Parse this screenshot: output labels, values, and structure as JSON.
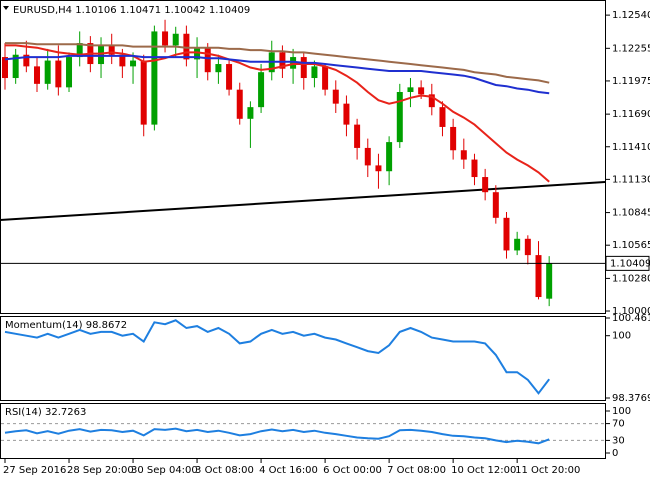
{
  "chart_data": [
    {
      "type": "candlestick",
      "symbol": "EURUSD,H4",
      "categories": [
        "27 Sep 2016",
        null,
        null,
        null,
        null,
        null,
        "28 Sep 20:00",
        null,
        null,
        null,
        null,
        null,
        "30 Sep 04:00",
        null,
        null,
        null,
        null,
        null,
        "3 Oct 08:00",
        null,
        null,
        null,
        null,
        null,
        "4 Oct 16:00",
        null,
        null,
        null,
        null,
        null,
        "6 Oct 00:00",
        null,
        null,
        null,
        null,
        null,
        "7 Oct 08:00",
        null,
        null,
        null,
        null,
        null,
        "10 Oct 12:00",
        null,
        null,
        null,
        null,
        null,
        "11 Oct 20:00",
        null,
        null,
        null
      ],
      "open": [
        1.1218,
        1.12,
        1.122,
        1.121,
        1.1195,
        1.1215,
        1.1192,
        1.1218,
        1.123,
        1.1212,
        1.1228,
        1.122,
        1.121,
        1.1215,
        1.116,
        1.124,
        1.1228,
        1.1238,
        1.1216,
        1.1226,
        1.1205,
        1.1212,
        1.119,
        1.1165,
        1.1175,
        1.1205,
        1.1222,
        1.1208,
        1.1218,
        1.12,
        1.121,
        1.119,
        1.1178,
        1.116,
        1.114,
        1.1125,
        1.112,
        1.1145,
        1.1188,
        1.1192,
        1.1186,
        1.1175,
        1.1158,
        1.1138,
        1.113,
        1.1115,
        1.1102,
        1.108,
        1.1052,
        1.1062,
        1.1048,
        1.10106
      ],
      "high": [
        1.123,
        1.1225,
        1.1232,
        1.1218,
        1.1225,
        1.1228,
        1.1222,
        1.124,
        1.1236,
        1.1235,
        1.1238,
        1.1225,
        1.1222,
        1.122,
        1.1245,
        1.125,
        1.1244,
        1.1245,
        1.1235,
        1.123,
        1.122,
        1.1215,
        1.1196,
        1.118,
        1.1212,
        1.1232,
        1.1228,
        1.1225,
        1.1222,
        1.1215,
        1.1212,
        1.1198,
        1.1185,
        1.1165,
        1.1148,
        1.1135,
        1.115,
        1.1195,
        1.12,
        1.1198,
        1.1195,
        1.118,
        1.1165,
        1.1148,
        1.1135,
        1.1122,
        1.1108,
        1.1085,
        1.1068,
        1.1065,
        1.106,
        1.10471
      ],
      "low": [
        1.119,
        1.1195,
        1.1205,
        1.1188,
        1.119,
        1.1185,
        1.1188,
        1.121,
        1.1205,
        1.12,
        1.1212,
        1.12,
        1.1195,
        1.115,
        1.1155,
        1.1222,
        1.1218,
        1.121,
        1.12,
        1.1198,
        1.1195,
        1.1185,
        1.116,
        1.114,
        1.117,
        1.1198,
        1.12,
        1.1195,
        1.119,
        1.1192,
        1.1185,
        1.117,
        1.115,
        1.113,
        1.1115,
        1.1105,
        1.1108,
        1.114,
        1.1175,
        1.1182,
        1.1168,
        1.115,
        1.113,
        1.1122,
        1.1108,
        1.1095,
        1.1075,
        1.1045,
        1.1048,
        1.104,
        1.101,
        1.10042
      ],
      "close": [
        1.12,
        1.122,
        1.121,
        1.1195,
        1.1215,
        1.1192,
        1.1218,
        1.123,
        1.1212,
        1.1228,
        1.122,
        1.121,
        1.1215,
        1.116,
        1.124,
        1.1228,
        1.1238,
        1.1216,
        1.1226,
        1.1205,
        1.1212,
        1.119,
        1.1165,
        1.1175,
        1.1205,
        1.1222,
        1.1208,
        1.1218,
        1.12,
        1.121,
        1.119,
        1.1178,
        1.116,
        1.114,
        1.1125,
        1.112,
        1.1145,
        1.1188,
        1.1192,
        1.1186,
        1.1175,
        1.1158,
        1.1138,
        1.113,
        1.1115,
        1.1102,
        1.108,
        1.1052,
        1.1062,
        1.1048,
        1.1012,
        1.10409
      ],
      "up_color": "#00a000",
      "down_color": "#e00000",
      "moving_averages": [
        {
          "color": "#e8231a",
          "values": [
            1.1228,
            1.1228,
            1.1227,
            1.1226,
            1.1224,
            1.1222,
            1.1221,
            1.122,
            1.1221,
            1.1221,
            1.1222,
            1.1221,
            1.1219,
            1.1214,
            1.1215,
            1.1217,
            1.122,
            1.1222,
            1.1222,
            1.1221,
            1.1219,
            1.1216,
            1.1213,
            1.1209,
            1.1207,
            1.1208,
            1.121,
            1.1212,
            1.1212,
            1.1212,
            1.121,
            1.1207,
            1.1202,
            1.1196,
            1.1188,
            1.1181,
            1.1178,
            1.118,
            1.1183,
            1.1185,
            1.1184,
            1.1178,
            1.1171,
            1.1166,
            1.116,
            1.1152,
            1.1144,
            1.1136,
            1.113,
            1.1125,
            1.1119,
            1.1111
          ]
        },
        {
          "color": "#1f2fd0",
          "values": [
            1.1216,
            1.1217,
            1.1218,
            1.1218,
            1.1218,
            1.1218,
            1.1219,
            1.1219,
            1.1219,
            1.1219,
            1.1219,
            1.1219,
            1.1219,
            1.1218,
            1.1218,
            1.1218,
            1.1218,
            1.1218,
            1.1218,
            1.1217,
            1.1217,
            1.1216,
            1.1215,
            1.1214,
            1.1214,
            1.1214,
            1.1214,
            1.1214,
            1.1213,
            1.1213,
            1.1212,
            1.1211,
            1.121,
            1.1209,
            1.1208,
            1.1207,
            1.1206,
            1.1206,
            1.1206,
            1.1206,
            1.1205,
            1.1204,
            1.1203,
            1.1202,
            1.12,
            1.1197,
            1.1194,
            1.1193,
            1.1191,
            1.119,
            1.1188,
            1.1187
          ]
        },
        {
          "color": "#9c6a4a",
          "values": [
            1.123,
            1.123,
            1.123,
            1.1229,
            1.1229,
            1.1229,
            1.1229,
            1.1229,
            1.1228,
            1.1228,
            1.1228,
            1.1228,
            1.1227,
            1.1227,
            1.1227,
            1.1227,
            1.1227,
            1.1226,
            1.1226,
            1.1226,
            1.1226,
            1.1225,
            1.1225,
            1.1224,
            1.1224,
            1.1223,
            1.1223,
            1.1222,
            1.1222,
            1.1221,
            1.122,
            1.1219,
            1.1218,
            1.1217,
            1.1216,
            1.1215,
            1.1214,
            1.1213,
            1.1212,
            1.1211,
            1.121,
            1.1209,
            1.1208,
            1.1207,
            1.1205,
            1.1204,
            1.1203,
            1.1201,
            1.12,
            1.1199,
            1.1198,
            1.1196
          ]
        }
      ],
      "last_price": 1.10409,
      "ylim": [
        1.09983,
        1.12644
      ],
      "yticks": [
        {
          "value": 1.1254,
          "label": "1.12540"
        },
        {
          "value": 1.12255,
          "label": "1.12255"
        },
        {
          "value": 1.11975,
          "label": "1.11975"
        },
        {
          "value": 1.1169,
          "label": "1.11690"
        },
        {
          "value": 1.1141,
          "label": "1.11410"
        },
        {
          "value": 1.1113,
          "label": "1.11130"
        },
        {
          "value": 1.10845,
          "label": "1.10845"
        },
        {
          "value": 1.10565,
          "label": "1.10565"
        },
        {
          "value": 1.1028,
          "label": "1.10280"
        },
        {
          "value": 1.1,
          "label": "1.10000"
        }
      ]
    },
    {
      "type": "line",
      "name": "Momentum(14)",
      "last": 98.8672,
      "color": "#1e7fe0",
      "values": [
        100.1,
        100.05,
        100.0,
        99.95,
        100.05,
        99.95,
        100.05,
        100.15,
        100.05,
        100.1,
        100.1,
        100.0,
        100.05,
        99.85,
        100.35,
        100.3,
        100.4,
        100.2,
        100.25,
        100.1,
        100.2,
        100.05,
        99.8,
        99.85,
        100.05,
        100.15,
        100.05,
        100.1,
        100.0,
        100.05,
        99.95,
        99.9,
        99.8,
        99.7,
        99.6,
        99.55,
        99.75,
        100.1,
        100.2,
        100.1,
        99.95,
        99.9,
        99.85,
        99.85,
        99.85,
        99.8,
        99.5,
        99.05,
        99.05,
        98.85,
        98.5,
        98.8672
      ],
      "ylim": [
        98.3769,
        100.4611
      ],
      "yticks": [
        98.3769,
        100,
        100.4611
      ]
    },
    {
      "type": "line",
      "name": "RSI(14)",
      "last": 32.7263,
      "color": "#1e7fe0",
      "values": [
        48,
        52,
        54,
        47,
        52,
        46,
        53,
        57,
        51,
        55,
        54,
        50,
        53,
        42,
        57,
        55,
        58,
        52,
        55,
        50,
        53,
        48,
        42,
        45,
        52,
        56,
        52,
        55,
        50,
        53,
        48,
        45,
        41,
        37,
        35,
        34,
        40,
        54,
        55,
        53,
        50,
        45,
        41,
        40,
        37,
        35,
        30,
        26,
        29,
        27,
        23,
        32.7263
      ],
      "ylim": [
        0,
        100
      ],
      "yticks": [
        0,
        30,
        70,
        100
      ],
      "level_style": "dashed"
    }
  ]
}
